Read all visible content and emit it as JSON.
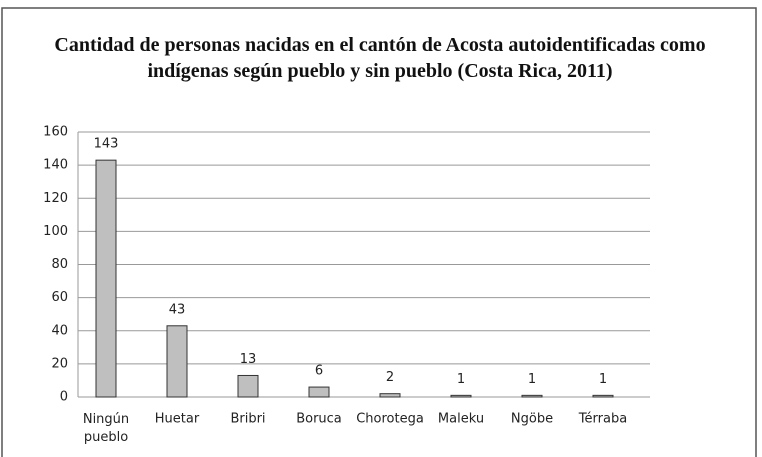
{
  "chart_data": {
    "type": "bar",
    "title": "Cantidad de personas nacidas en el cantón de Acosta autoidentificadas como indígenas según pueblo y sin pueblo (Costa Rica, 2011)",
    "categories": [
      "Ningún pueblo",
      "Huetar",
      "Bribri",
      "Boruca",
      "Chorotega",
      "Maleku",
      "Ngöbe",
      "Térraba"
    ],
    "values": [
      143,
      43,
      13,
      6,
      2,
      1,
      1,
      1
    ],
    "color": "#bfbfbf",
    "ylim": [
      0,
      160
    ],
    "yticks": [
      0,
      20,
      40,
      60,
      80,
      100,
      120,
      140,
      160
    ],
    "grid": true
  }
}
